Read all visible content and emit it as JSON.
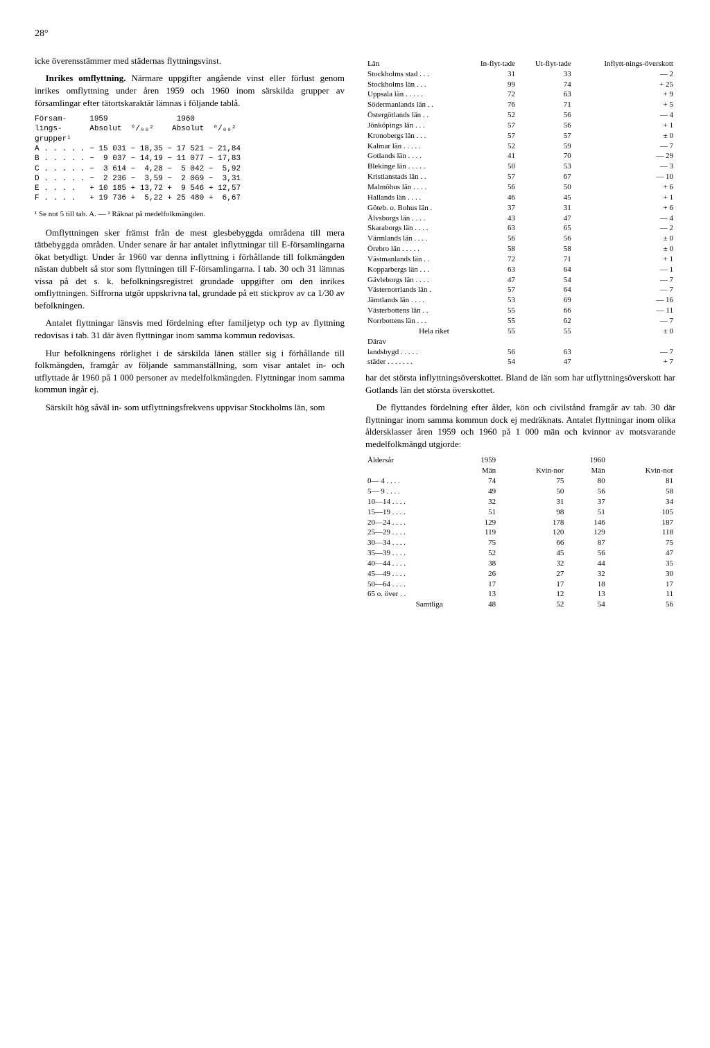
{
  "page_number": "28°",
  "left": {
    "p1": "icke överensstämmer med städernas flyttningsvinst.",
    "p2_lead": "Inrikes omflyttning.",
    "p2": " Närmare uppgifter angående vinst eller förlust genom inrikes omflyttning under åren 1959 och 1960 inom särskilda grupper av församlingar efter tätortskaraktär lämnas i följande tablå.",
    "table1": {
      "header1": "Försam-     1959               1960",
      "header2": "lings-      Absolut  ⁰/₀₀²    Absolut  ⁰/₀₀²",
      "header3": "grupper¹",
      "rows": [
        "A . . . . . − 15 031 − 18,35 − 17 521 − 21,84",
        "B . . . . . −  9 037 − 14,19 − 11 077 − 17,83",
        "C . . . . . −  3 614 −  4,28 −  5 042 −  5,92",
        "D . . . . . −  2 236 −  3,59 −  2 069 −  3,31",
        "E . . . .   + 10 185 + 13,72 +  9 546 + 12,57",
        "F . . . .   + 19 736 +  5,22 + 25 480 +  6,67"
      ],
      "footnote": "¹ Se not 5 till tab. A. — ² Räknat på medelfolkmängden."
    },
    "p3": "Omflyttningen sker främst från de mest glesbebyggda områdena till mera tätbebyggda områden. Under senare år har antalet inflyttningar till E-församlingarna ökat betydligt. Under år 1960 var denna inflyttning i förhållande till folkmängden nästan dubbelt så stor som flyttningen till F-församlingarna. I tab. 30 och 31 lämnas vissa på det s. k. befolkningsregistret grundade uppgifter om den inrikes omflyttningen. Siffrorna utgör uppskrivna tal, grundade på ett stickprov av ca 1/30 av befolkningen.",
    "p4": "Antalet flyttningar länsvis med fördelning efter familjetyp och typ av flyttning redovisas i tab. 31 där även flyttningar inom samma kommun redovisas.",
    "p5": "Hur befolkningens rörlighet i de särskilda länen ställer sig i förhållande till folkmängden, framgår av följande sammanställning, som visar antalet in- och utflyttade år 1960 på 1 000 personer av medelfolkmängden. Flyttningar inom samma kommun ingår ej.",
    "p6": "Särskilt hög såväl in- som utflyttningsfrekvens uppvisar Stockholms län, som"
  },
  "right": {
    "lan_table": {
      "headers": [
        "Län",
        "In-flyt-tade",
        "Ut-flyt-tade",
        "Inflytt-nings-överskott"
      ],
      "rows": [
        [
          "Stockholms stad . . .",
          "31",
          "33",
          "— 2"
        ],
        [
          "Stockholms län . . .",
          "99",
          "74",
          "+ 25"
        ],
        [
          "Uppsala län . . . . .",
          "72",
          "63",
          "+ 9"
        ],
        [
          "Södermanlands län . .",
          "76",
          "71",
          "+ 5"
        ],
        [
          "Östergötlands län . .",
          "52",
          "56",
          "— 4"
        ],
        [
          "Jönköpings län . . .",
          "57",
          "56",
          "+ 1"
        ],
        [
          "Kronobergs län . . .",
          "57",
          "57",
          "± 0"
        ],
        [
          "Kalmar län . . . . .",
          "52",
          "59",
          "— 7"
        ],
        [
          "Gotlands län . . . .",
          "41",
          "70",
          "— 29"
        ],
        [
          "Blekinge län . . . . .",
          "50",
          "53",
          "— 3"
        ],
        [
          "Kristianstads län . .",
          "57",
          "67",
          "— 10"
        ],
        [
          "Malmöhus län . . . .",
          "56",
          "50",
          "+ 6"
        ],
        [
          "Hallands län . . . .",
          "46",
          "45",
          "+ 1"
        ],
        [
          "Göteb. o. Bohus län .",
          "37",
          "31",
          "+ 6"
        ],
        [
          "Älvsborgs län . . . .",
          "43",
          "47",
          "— 4"
        ],
        [
          "Skaraborgs län . . . .",
          "63",
          "65",
          "— 2"
        ],
        [
          "Värmlands län . . . .",
          "56",
          "56",
          "± 0"
        ],
        [
          "Örebro län . . . . .",
          "58",
          "58",
          "± 0"
        ],
        [
          "Västmanlands län . .",
          "72",
          "71",
          "+ 1"
        ],
        [
          "Kopparbergs län . . .",
          "63",
          "64",
          "— 1"
        ],
        [
          "Gävleborgs län . . . .",
          "47",
          "54",
          "— 7"
        ],
        [
          "Västernorrlands län .",
          "57",
          "64",
          "— 7"
        ],
        [
          "Jämtlands län . . . .",
          "53",
          "69",
          "— 16"
        ],
        [
          "Västerbottens län . .",
          "55",
          "66",
          "— 11"
        ],
        [
          "Norrbottens län . . .",
          "55",
          "62",
          "— 7"
        ]
      ],
      "total": [
        "Hela riket",
        "55",
        "55",
        "± 0"
      ],
      "darav": "Därav",
      "sub": [
        [
          "landsbygd . . . . .",
          "56",
          "63",
          "— 7"
        ],
        [
          "städer . . . . . . .",
          "54",
          "47",
          "+ 7"
        ]
      ]
    },
    "p1": "har det största inflyttningsöverskottet. Bland de län som har utflyttningsöverskott har Gotlands län det största överskottet.",
    "p2": "De flyttandes fördelning efter ålder, kön och civilstånd framgår av tab. 30 där flyttningar inom samma kommun dock ej medräknats. Antalet flyttningar inom olika åldersklasser åren 1959 och 1960 på 1 000 män och kvinnor av motsvarande medelfolkmängd utgjorde:",
    "age_table": {
      "headers": [
        "Åldersår",
        "1959",
        "",
        "1960",
        ""
      ],
      "subheaders": [
        "",
        "Män",
        "Kvin-nor",
        "Män",
        "Kvin-nor"
      ],
      "rows": [
        [
          "0— 4 . . . .",
          "74",
          "75",
          "80",
          "81"
        ],
        [
          "5— 9 . . . .",
          "49",
          "50",
          "56",
          "58"
        ],
        [
          "10—14 . . . .",
          "32",
          "31",
          "37",
          "34"
        ],
        [
          "15—19 . . . .",
          "51",
          "98",
          "51",
          "105"
        ],
        [
          "20—24 . . . .",
          "129",
          "178",
          "146",
          "187"
        ],
        [
          "25—29 . . . .",
          "119",
          "120",
          "129",
          "118"
        ],
        [
          "30—34 . . . .",
          "75",
          "66",
          "87",
          "75"
        ],
        [
          "35—39 . . . .",
          "52",
          "45",
          "56",
          "47"
        ],
        [
          "40—44 . . . .",
          "38",
          "32",
          "44",
          "35"
        ],
        [
          "45—49 . . . .",
          "26",
          "27",
          "32",
          "30"
        ],
        [
          "50—64 . . . .",
          "17",
          "17",
          "18",
          "17"
        ],
        [
          "65 o. över . .",
          "13",
          "12",
          "13",
          "11"
        ]
      ],
      "total": [
        "Samtliga",
        "48",
        "52",
        "54",
        "56"
      ]
    }
  }
}
